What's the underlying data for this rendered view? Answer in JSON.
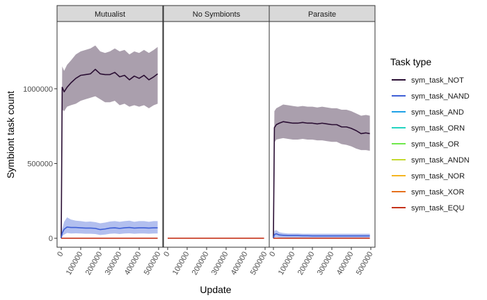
{
  "chart_data": {
    "type": "line",
    "title": "",
    "xlabel": "Update",
    "ylabel": "Symbiont task count",
    "xlim": [
      0,
      500000
    ],
    "ylim": [
      -60000,
      1450000
    ],
    "x_ticks": [
      0,
      100000,
      200000,
      300000,
      400000,
      500000
    ],
    "x_tick_labels": [
      "0",
      "100000",
      "200000",
      "300000",
      "400000",
      "500000"
    ],
    "y_ticks": [
      0,
      500000,
      1000000
    ],
    "y_tick_labels": [
      "0",
      "500000",
      "1000000"
    ],
    "grid": false,
    "legend": {
      "title": "Task type",
      "position": "right",
      "entries": [
        {
          "name": "sym_task_NOT",
          "color": "#2a0e33"
        },
        {
          "name": "sym_task_NAND",
          "color": "#3e5fd6"
        },
        {
          "name": "sym_task_AND",
          "color": "#1ea1e6"
        },
        {
          "name": "sym_task_ORN",
          "color": "#22d4c0"
        },
        {
          "name": "sym_task_OR",
          "color": "#6ee84a"
        },
        {
          "name": "sym_task_ANDN",
          "color": "#c4d92f"
        },
        {
          "name": "sym_task_NOR",
          "color": "#f5b521"
        },
        {
          "name": "sym_task_XOR",
          "color": "#e6701c"
        },
        {
          "name": "sym_task_EQU",
          "color": "#c5321a"
        }
      ]
    },
    "panels": [
      {
        "title": "Mutualist",
        "series": [
          {
            "name": "sym_task_NOT",
            "x": [
              0,
              5000,
              15000,
              30000,
              50000,
              75000,
              100000,
              125000,
              150000,
              175000,
              200000,
              225000,
              250000,
              275000,
              300000,
              325000,
              350000,
              375000,
              400000,
              425000,
              450000,
              475000,
              495000
            ],
            "y": [
              0,
              1010000,
              980000,
              1010000,
              1040000,
              1070000,
              1090000,
              1095000,
              1100000,
              1130000,
              1100000,
              1095000,
              1095000,
              1110000,
              1080000,
              1090000,
              1060000,
              1085000,
              1070000,
              1090000,
              1060000,
              1080000,
              1100000
            ],
            "lower": [
              0,
              860000,
              850000,
              880000,
              890000,
              900000,
              920000,
              930000,
              940000,
              950000,
              930000,
              910000,
              910000,
              920000,
              890000,
              900000,
              880000,
              890000,
              880000,
              890000,
              870000,
              890000,
              900000
            ],
            "upper": [
              0,
              1150000,
              1120000,
              1160000,
              1190000,
              1230000,
              1250000,
              1260000,
              1270000,
              1290000,
              1250000,
              1240000,
              1250000,
              1270000,
              1250000,
              1260000,
              1230000,
              1250000,
              1240000,
              1260000,
              1240000,
              1260000,
              1280000
            ]
          },
          {
            "name": "sym_task_NAND",
            "x": [
              0,
              5000,
              15000,
              30000,
              50000,
              75000,
              100000,
              125000,
              150000,
              175000,
              200000,
              225000,
              250000,
              275000,
              300000,
              325000,
              350000,
              375000,
              400000,
              425000,
              450000,
              475000,
              495000
            ],
            "y": [
              0,
              35000,
              60000,
              75000,
              72000,
              72000,
              70000,
              68000,
              68000,
              66000,
              58000,
              62000,
              68000,
              70000,
              66000,
              70000,
              72000,
              68000,
              70000,
              70000,
              68000,
              70000,
              70000
            ],
            "lower": [
              0,
              15000,
              25000,
              35000,
              32000,
              33000,
              32000,
              30000,
              30000,
              28000,
              22000,
              25000,
              30000,
              32000,
              28000,
              32000,
              33000,
              30000,
              32000,
              32000,
              30000,
              32000,
              32000
            ],
            "upper": [
              0,
              60000,
              110000,
              140000,
              125000,
              118000,
              115000,
              110000,
              112000,
              108000,
              100000,
              105000,
              112000,
              115000,
              110000,
              115000,
              118000,
              110000,
              115000,
              115000,
              110000,
              115000,
              115000
            ]
          },
          {
            "name": "sym_task_EQU",
            "x": [
              0,
              495000
            ],
            "y": [
              0,
              0
            ],
            "lower": [
              0,
              0
            ],
            "upper": [
              0,
              0
            ]
          }
        ]
      },
      {
        "title": "No Symbionts",
        "series": [
          {
            "name": "sym_task_EQU",
            "x": [
              0,
              495000
            ],
            "y": [
              0,
              0
            ],
            "lower": [
              0,
              0
            ],
            "upper": [
              0,
              0
            ]
          }
        ]
      },
      {
        "title": "Parasite",
        "series": [
          {
            "name": "sym_task_NOT",
            "x": [
              0,
              5000,
              15000,
              30000,
              50000,
              75000,
              100000,
              125000,
              150000,
              175000,
              200000,
              225000,
              250000,
              275000,
              300000,
              325000,
              350000,
              375000,
              400000,
              425000,
              450000,
              475000,
              495000
            ],
            "y": [
              0,
              740000,
              760000,
              770000,
              780000,
              775000,
              770000,
              770000,
              775000,
              770000,
              770000,
              765000,
              770000,
              765000,
              760000,
              760000,
              745000,
              745000,
              735000,
              720000,
              700000,
              705000,
              700000
            ],
            "lower": [
              0,
              640000,
              660000,
              665000,
              670000,
              665000,
              660000,
              660000,
              665000,
              660000,
              660000,
              655000,
              655000,
              650000,
              645000,
              645000,
              630000,
              625000,
              615000,
              600000,
              590000,
              590000,
              585000
            ],
            "upper": [
              0,
              850000,
              870000,
              880000,
              895000,
              890000,
              885000,
              880000,
              885000,
              880000,
              880000,
              875000,
              880000,
              875000,
              870000,
              870000,
              860000,
              860000,
              850000,
              835000,
              820000,
              825000,
              820000
            ]
          },
          {
            "name": "sym_task_NAND",
            "x": [
              0,
              5000,
              15000,
              30000,
              50000,
              75000,
              100000,
              125000,
              150000,
              175000,
              200000,
              225000,
              250000,
              275000,
              300000,
              325000,
              350000,
              375000,
              400000,
              425000,
              450000,
              475000,
              495000
            ],
            "y": [
              0,
              25000,
              30000,
              22000,
              20000,
              18000,
              18000,
              18000,
              17000,
              17000,
              16000,
              16000,
              16000,
              16000,
              16000,
              16000,
              16000,
              16000,
              16000,
              16000,
              16000,
              16000,
              16000
            ],
            "lower": [
              0,
              5000,
              8000,
              5000,
              5000,
              4000,
              4000,
              4000,
              4000,
              4000,
              4000,
              4000,
              4000,
              4000,
              4000,
              4000,
              4000,
              4000,
              4000,
              4000,
              4000,
              4000,
              4000
            ],
            "upper": [
              0,
              50000,
              55000,
              40000,
              35000,
              32000,
              32000,
              32000,
              30000,
              30000,
              30000,
              30000,
              30000,
              30000,
              30000,
              30000,
              30000,
              30000,
              30000,
              30000,
              30000,
              30000,
              30000
            ]
          },
          {
            "name": "sym_task_EQU",
            "x": [
              0,
              495000
            ],
            "y": [
              0,
              0
            ],
            "lower": [
              0,
              0
            ],
            "upper": [
              0,
              0
            ]
          }
        ]
      }
    ]
  }
}
